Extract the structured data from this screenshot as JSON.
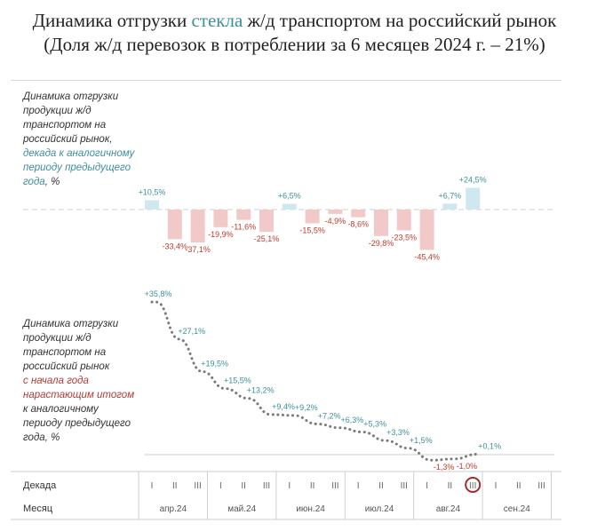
{
  "title": {
    "line1_a": "Динамика отгрузки ",
    "line1_accent": "стекла",
    "line1_b": " ж/д транспортом на российский рынок",
    "line2": "(Доля ж/д перевозок в потреблении за 6 месяцев 2024 г. – 21%)"
  },
  "colors": {
    "teal": "#3d8f98",
    "red_text": "#c0392b",
    "pos_bar": "#cfe8ef",
    "neg_bar": "#f2c9c9",
    "dots": "#7a7a7a",
    "highlight_circle": "#a52a2a"
  },
  "top_note": {
    "l1": "Динамика отгрузки",
    "l2": "продукции ж/д",
    "l3": "транспортом на",
    "l4": "российский рынок,",
    "l5": "декада к аналогичному",
    "l6": "периоду предыдущего",
    "l7a": "года",
    "l7b": ", %"
  },
  "bottom_note": {
    "l1": "Динамика отгрузки",
    "l2": "продукции ж/д",
    "l3": "транспортом на",
    "l4": "российский рынок",
    "l5": "с начала года",
    "l6": "нарастающим итогом",
    "l7": "к аналогичному",
    "l8": "периоду предыдущего",
    "l9": "года, %"
  },
  "axis": {
    "decade_label": "Декада",
    "month_label": "Месяц",
    "decades": [
      "I",
      "II",
      "III",
      "I",
      "II",
      "III",
      "I",
      "II",
      "III",
      "I",
      "II",
      "III",
      "I",
      "II",
      "III",
      "I",
      "II",
      "III"
    ],
    "months": [
      "апр.24",
      "май.24",
      "июн.24",
      "июл.24",
      "авг.24",
      "сен.24"
    ],
    "highlighted_decade_index": 14
  },
  "chart_data": [
    {
      "type": "bar",
      "categories": [
        "апр.24 I",
        "апр.24 II",
        "апр.24 III",
        "май.24 I",
        "май.24 II",
        "май.24 III",
        "июн.24 I",
        "июн.24 II",
        "июн.24 III",
        "июл.24 I",
        "июл.24 II",
        "июл.24 III",
        "авг.24 I",
        "авг.24 II",
        "авг.24 III"
      ],
      "values": [
        10.5,
        -33.4,
        -37.1,
        -19.9,
        -11.6,
        -25.1,
        6.5,
        -15.5,
        -4.9,
        -8.6,
        -29.8,
        -23.5,
        -45.4,
        6.7,
        24.5
      ],
      "labels": [
        "+10,5%",
        "-33,4%",
        "-37,1%",
        "-19,9%",
        "-11,6%",
        "-25,1%",
        "+6,5%",
        "-15,5%",
        "-4,9%",
        "-8,6%",
        "-29,8%",
        "-23,5%",
        "-45,4%",
        "+6,7%",
        "+24,5%"
      ]
    },
    {
      "type": "line",
      "categories": [
        "апр.24 I",
        "апр.24 II",
        "апр.24 III",
        "май.24 I",
        "май.24 II",
        "май.24 III",
        "июн.24 I",
        "июн.24 II",
        "июн.24 III",
        "июл.24 I",
        "июл.24 II",
        "июл.24 III",
        "авг.24 I",
        "авг.24 II",
        "авг.24 III"
      ],
      "values": [
        35.8,
        27.1,
        19.5,
        15.5,
        13.2,
        9.4,
        9.2,
        7.2,
        6.3,
        5.3,
        3.3,
        1.5,
        -1.3,
        -1.0,
        0.1
      ],
      "labels": [
        "+35,8%",
        "+27,1%",
        "+19,5%",
        "+15,5%",
        "+13,2%",
        "+9,4%",
        "+9,2%",
        "+7,2%",
        "+6,3%",
        "+5,3%",
        "+3,3%",
        "+1,5%",
        "-1,3%",
        "-1,0%",
        "+0,1%"
      ]
    }
  ]
}
